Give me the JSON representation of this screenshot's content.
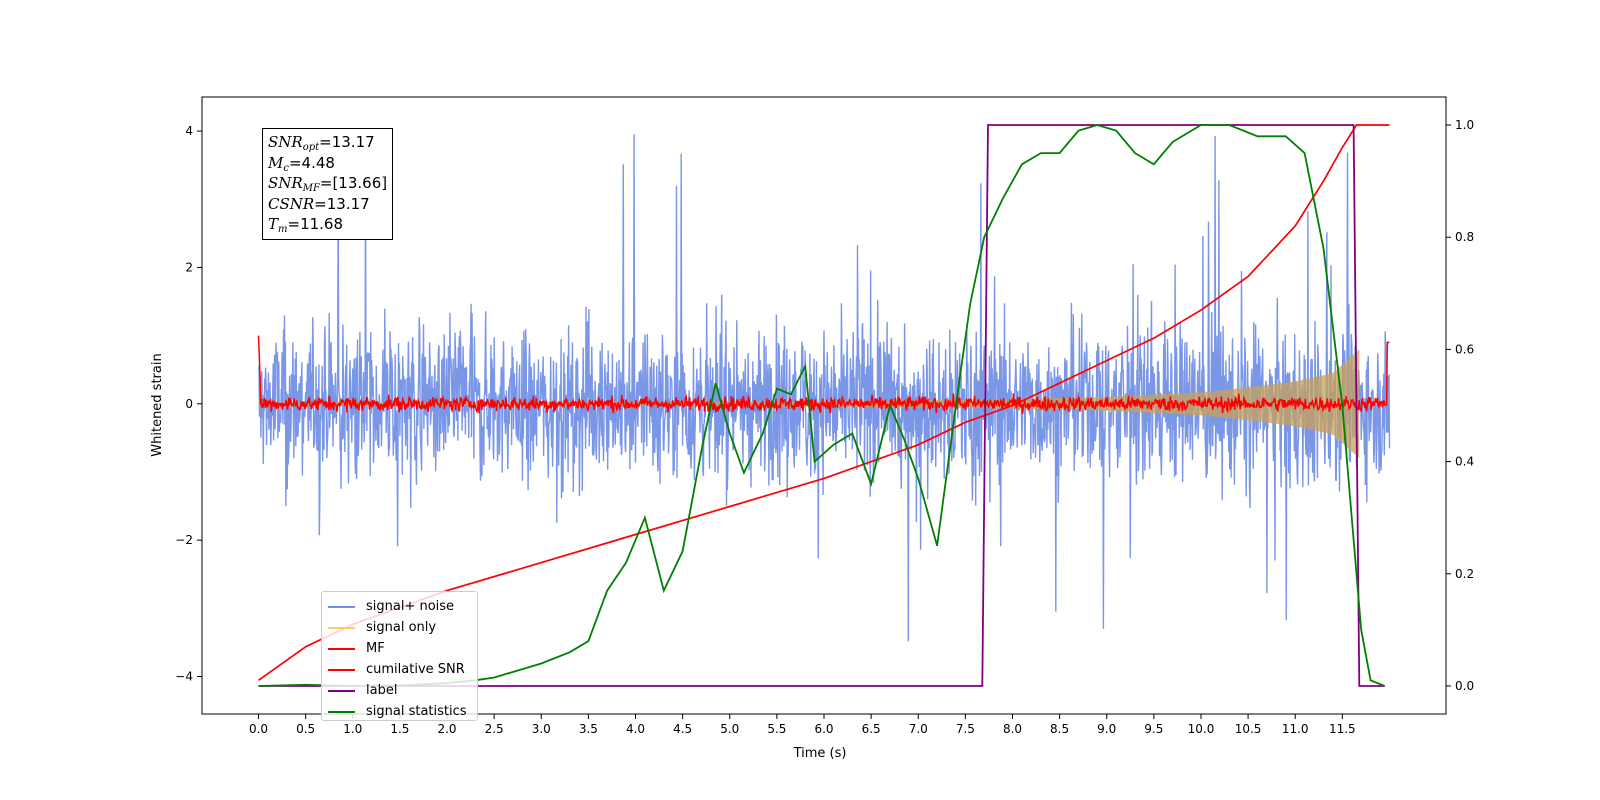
{
  "chart_data": {
    "type": "line",
    "xlabel": "Time (s)",
    "ylabel": "Whitened strain",
    "xlim": [
      -0.6,
      12.6
    ],
    "ylim": [
      -4.55,
      4.5
    ],
    "y2lim": [
      -0.05,
      1.05
    ],
    "x_ticks": [
      "0.0",
      "0.5",
      "1.0",
      "1.5",
      "2.0",
      "2.5",
      "3.0",
      "3.5",
      "4.0",
      "4.5",
      "5.0",
      "5.5",
      "6.0",
      "6.5",
      "7.0",
      "7.5",
      "8.0",
      "8.5",
      "9.0",
      "9.5",
      "10.0",
      "10.5",
      "11.0",
      "11.5"
    ],
    "y_ticks": [
      "4",
      "2",
      "0",
      "−2",
      "−4"
    ],
    "y2_ticks": [
      "1.0",
      "0.8",
      "0.6",
      "0.4",
      "0.2",
      "0.0"
    ],
    "annotations": [
      {
        "var": "SNR",
        "sub": "opt",
        "value": "=13.17"
      },
      {
        "var": "M",
        "sub": "c",
        "value": "=4.48"
      },
      {
        "var": "SNR",
        "sub": "MF",
        "value": "=[13.66]"
      },
      {
        "var": "CSNR",
        "sub": "",
        "value": "=13.17"
      },
      {
        "var": "T",
        "sub": "m",
        "value": "=11.68"
      }
    ],
    "series": [
      {
        "name": "signal+ noise",
        "color": "#7390e6",
        "description": "noise band, roughly -1.5..1.5 with spikes to about ±4"
      },
      {
        "name": "signal only",
        "color": "#ffc966",
        "envelope": {
          "x": [
            0,
            4,
            6,
            8,
            9,
            10,
            10.5,
            11,
            11.4,
            11.68
          ],
          "amp": [
            0.02,
            0.03,
            0.04,
            0.07,
            0.1,
            0.17,
            0.24,
            0.33,
            0.45,
            0.8
          ]
        }
      },
      {
        "name": "MF",
        "color": "#ff0000",
        "description": "noise around 0 with amplitude ~0.12, spike ~1.0 at t=0"
      },
      {
        "name": "cumilative SNR",
        "color": "#ff0000",
        "axis": "right",
        "x": [
          0,
          0.5,
          1,
          2,
          3,
          4,
          5,
          6,
          7,
          7.5,
          8,
          8.5,
          9,
          9.5,
          10,
          10.5,
          11,
          11.3,
          11.5,
          11.65,
          11.7,
          12.0
        ],
        "y": [
          0.01,
          0.07,
          0.11,
          0.17,
          0.22,
          0.27,
          0.32,
          0.37,
          0.43,
          0.47,
          0.5,
          0.54,
          0.58,
          0.62,
          0.67,
          0.73,
          0.82,
          0.9,
          0.96,
          1.0,
          1.0,
          1.0
        ]
      },
      {
        "name": "label",
        "color": "#800080",
        "axis": "right",
        "x": [
          0,
          7.68,
          7.74,
          11.62,
          11.68,
          11.95
        ],
        "y": [
          0,
          0,
          1,
          1,
          0,
          0
        ]
      },
      {
        "name": "signal statistics",
        "color": "#008000",
        "axis": "right",
        "x": [
          0,
          0.5,
          1,
          1.5,
          2,
          2.3,
          2.5,
          2.8,
          3.0,
          3.3,
          3.5,
          3.7,
          3.9,
          4.1,
          4.3,
          4.5,
          4.7,
          4.85,
          5.0,
          5.15,
          5.35,
          5.5,
          5.65,
          5.8,
          5.9,
          6.1,
          6.3,
          6.5,
          6.7,
          6.85,
          7.0,
          7.2,
          7.4,
          7.55,
          7.7,
          7.9,
          8.1,
          8.3,
          8.5,
          8.7,
          8.9,
          9.1,
          9.3,
          9.5,
          9.7,
          10.0,
          10.3,
          10.6,
          10.9,
          11.1,
          11.3,
          11.5,
          11.7,
          11.8,
          11.95
        ],
        "y": [
          0.0,
          0.002,
          0.0,
          0.001,
          0.005,
          0.01,
          0.015,
          0.03,
          0.04,
          0.06,
          0.08,
          0.17,
          0.22,
          0.3,
          0.17,
          0.24,
          0.42,
          0.54,
          0.45,
          0.38,
          0.45,
          0.53,
          0.52,
          0.57,
          0.4,
          0.43,
          0.45,
          0.36,
          0.5,
          0.44,
          0.37,
          0.25,
          0.5,
          0.68,
          0.8,
          0.87,
          0.93,
          0.95,
          0.95,
          0.99,
          1.0,
          0.99,
          0.95,
          0.93,
          0.97,
          1.0,
          1.0,
          0.98,
          0.98,
          0.95,
          0.78,
          0.5,
          0.1,
          0.01,
          0.0
        ]
      }
    ],
    "legend": {
      "placement": "lower-left",
      "entries": [
        "signal+ noise",
        "signal only",
        "MF",
        "cumilative SNR",
        "label",
        "signal statistics"
      ]
    },
    "grid": false
  }
}
